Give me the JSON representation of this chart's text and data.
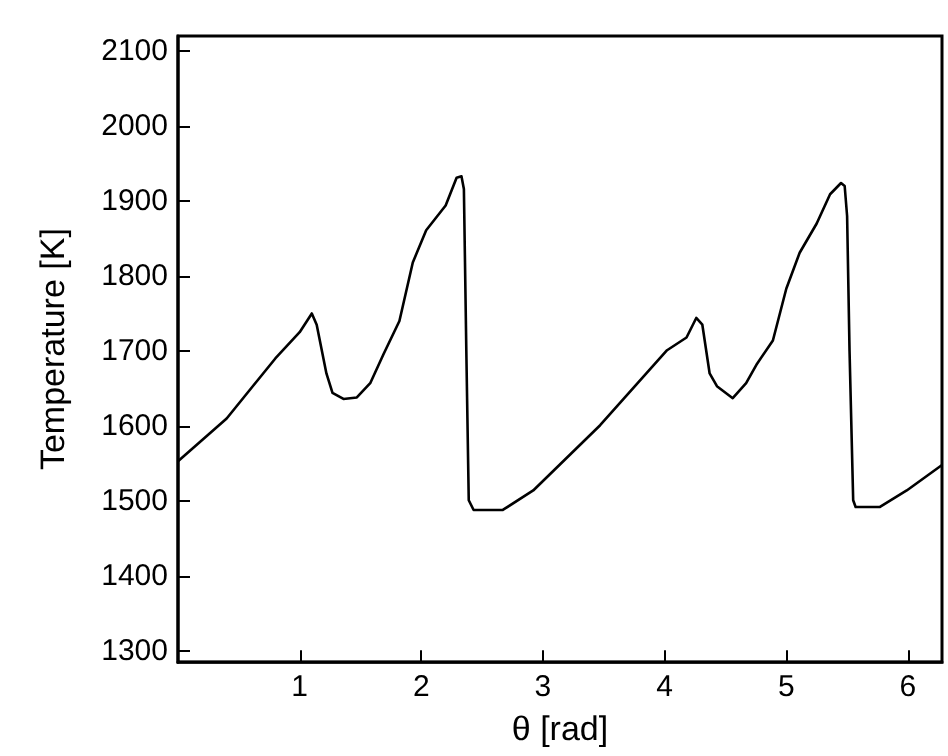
{
  "chart_data": {
    "type": "line",
    "xlabel": "θ [rad]",
    "ylabel": "Temperature [K]",
    "x": [
      0,
      0.4,
      0.8,
      1.0,
      1.1,
      1.14,
      1.22,
      1.27,
      1.36,
      1.47,
      1.58,
      1.69,
      1.82,
      1.93,
      2.04,
      2.2,
      2.29,
      2.33,
      2.35,
      2.37,
      2.39,
      2.43,
      2.67,
      2.92,
      3.47,
      4.02,
      4.18,
      4.26,
      4.31,
      4.37,
      4.43,
      4.56,
      4.67,
      4.76,
      4.89,
      5.0,
      5.11,
      5.25,
      5.36,
      5.45,
      5.48,
      5.5,
      5.52,
      5.55,
      5.57,
      5.77,
      5.99,
      6.28
    ],
    "series": [
      {
        "color": "#000000",
        "values": [
          1553,
          1610,
          1690,
          1725,
          1750,
          1735,
          1670,
          1644,
          1636,
          1638,
          1657,
          1696,
          1740,
          1818,
          1861,
          1894,
          1931,
          1933,
          1916,
          1700,
          1501,
          1488,
          1488,
          1514,
          1601,
          1701,
          1718,
          1744,
          1735,
          1670,
          1653,
          1637,
          1657,
          1683,
          1714,
          1783,
          1831,
          1870,
          1909,
          1924,
          1920,
          1880,
          1700,
          1501,
          1492,
          1492,
          1514,
          1548
        ]
      }
    ],
    "xlim": [
      0,
      6.28
    ],
    "xticks": [
      1,
      2,
      3,
      4,
      5,
      6
    ],
    "ylim": [
      1285,
      2120
    ],
    "yticks": [
      1300,
      1400,
      1500,
      1600,
      1700,
      1800,
      1900,
      2000,
      2100
    ],
    "grid": false,
    "marker": "none",
    "line_style": "solid"
  }
}
